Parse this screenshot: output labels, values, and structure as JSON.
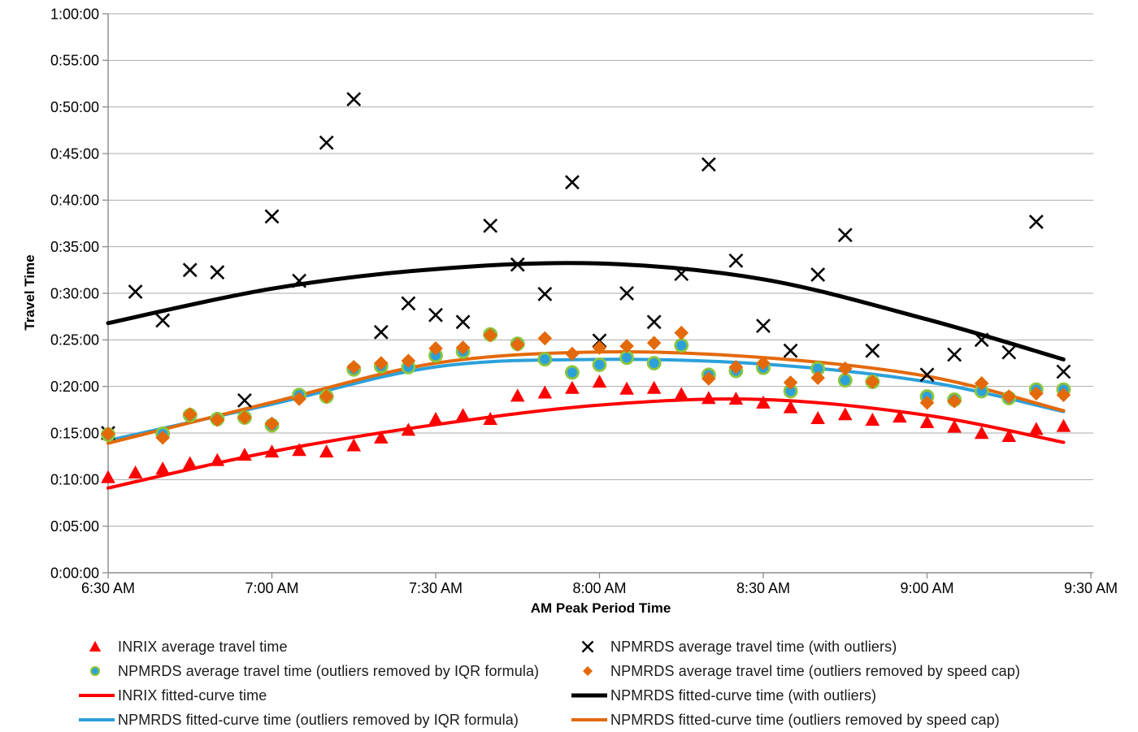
{
  "chart_data": {
    "type": "scatter",
    "title": "",
    "xlabel": "AM Peak Period Time",
    "ylabel": "Travel Time",
    "x_ticks": [
      "6:30 AM",
      "7:00 AM",
      "7:30 AM",
      "8:00 AM",
      "8:30 AM",
      "9:00 AM",
      "9:30 AM"
    ],
    "y_ticks": [
      "0:00:00",
      "0:05:00",
      "0:10:00",
      "0:15:00",
      "0:20:00",
      "0:25:00",
      "0:30:00",
      "0:35:00",
      "0:40:00",
      "0:45:00",
      "0:50:00",
      "0:55:00",
      "1:00:00"
    ],
    "x_axis_minutes_from_630am": [
      0,
      180
    ],
    "y_axis_minutes": [
      0,
      60
    ],
    "grid": true,
    "legend_position": "bottom-two-columns",
    "colors": {
      "inrix": "#FF0000",
      "outliers": "#000000",
      "iqr": "#2CA0DA",
      "iqr_ring": "#8CC63E",
      "speedcap": "#E3690B",
      "gridline": "#ABABAB",
      "axis": "#8C8C8C",
      "text": "#000000"
    },
    "series": [
      {
        "id": "inrix_avg",
        "name": "INRIX average travel time",
        "marker": "triangle",
        "color": "inrix",
        "points": [
          [
            "6:30",
            "0:10:15"
          ],
          [
            "6:35",
            "0:10:45"
          ],
          [
            "6:40",
            "0:11:10"
          ],
          [
            "6:45",
            "0:11:45"
          ],
          [
            "6:50",
            "0:12:05"
          ],
          [
            "6:55",
            "0:12:40"
          ],
          [
            "7:00",
            "0:13:00"
          ],
          [
            "7:05",
            "0:13:10"
          ],
          [
            "7:10",
            "0:13:00"
          ],
          [
            "7:15",
            "0:13:40"
          ],
          [
            "7:20",
            "0:14:30"
          ],
          [
            "7:25",
            "0:15:20"
          ],
          [
            "7:30",
            "0:16:30"
          ],
          [
            "7:35",
            "0:16:55"
          ],
          [
            "7:40",
            "0:16:30"
          ],
          [
            "7:45",
            "0:19:00"
          ],
          [
            "7:50",
            "0:19:20"
          ],
          [
            "7:55",
            "0:19:50"
          ],
          [
            "8:00",
            "0:20:30"
          ],
          [
            "8:05",
            "0:19:45"
          ],
          [
            "8:10",
            "0:19:50"
          ],
          [
            "8:15",
            "0:19:10"
          ],
          [
            "8:20",
            "0:18:45"
          ],
          [
            "8:25",
            "0:18:40"
          ],
          [
            "8:30",
            "0:18:15"
          ],
          [
            "8:35",
            "0:17:45"
          ],
          [
            "8:40",
            "0:16:35"
          ],
          [
            "8:45",
            "0:17:00"
          ],
          [
            "8:50",
            "0:16:25"
          ],
          [
            "8:55",
            "0:16:45"
          ],
          [
            "9:00",
            "0:16:10"
          ],
          [
            "9:05",
            "0:15:40"
          ],
          [
            "9:10",
            "0:15:00"
          ],
          [
            "9:15",
            "0:14:40"
          ],
          [
            "9:20",
            "0:15:25"
          ],
          [
            "9:25",
            "0:15:45"
          ]
        ]
      },
      {
        "id": "npmrds_outliers",
        "name": "NPMRDS average travel time (with outliers)",
        "marker": "x",
        "color": "outliers",
        "points": [
          [
            "6:30",
            "0:15:00"
          ],
          [
            "6:35",
            "0:30:10"
          ],
          [
            "6:40",
            "0:27:05"
          ],
          [
            "6:45",
            "0:32:30"
          ],
          [
            "6:50",
            "0:32:15"
          ],
          [
            "6:55",
            "0:18:30"
          ],
          [
            "7:00",
            "0:38:15"
          ],
          [
            "7:05",
            "0:31:20"
          ],
          [
            "7:10",
            "0:46:10"
          ],
          [
            "7:15",
            "0:50:50"
          ],
          [
            "7:20",
            "0:25:50"
          ],
          [
            "7:25",
            "0:28:55"
          ],
          [
            "7:30",
            "0:27:40"
          ],
          [
            "7:35",
            "0:26:55"
          ],
          [
            "7:40",
            "0:37:15"
          ],
          [
            "7:45",
            "0:33:05"
          ],
          [
            "7:50",
            "0:29:55"
          ],
          [
            "7:55",
            "0:41:55"
          ],
          [
            "8:00",
            "0:24:55"
          ],
          [
            "8:05",
            "0:30:00"
          ],
          [
            "8:10",
            "0:26:55"
          ],
          [
            "8:15",
            "0:32:05"
          ],
          [
            "8:20",
            "0:43:50"
          ],
          [
            "8:25",
            "0:33:30"
          ],
          [
            "8:30",
            "0:26:30"
          ],
          [
            "8:35",
            "0:23:50"
          ],
          [
            "8:40",
            "0:32:00"
          ],
          [
            "8:45",
            "0:36:15"
          ],
          [
            "8:50",
            "0:23:50"
          ],
          [
            "9:00",
            "0:21:15"
          ],
          [
            "9:05",
            "0:23:25"
          ],
          [
            "9:10",
            "0:25:00"
          ],
          [
            "9:15",
            "0:23:40"
          ],
          [
            "9:20",
            "0:37:40"
          ],
          [
            "9:25",
            "0:21:35"
          ]
        ]
      },
      {
        "id": "npmrds_iqr",
        "name": "NPMRDS average travel time (outliers removed by IQR formula)",
        "marker": "circle",
        "color": "iqr",
        "ring": "iqr_ring",
        "points": [
          [
            "6:30",
            "0:14:50"
          ],
          [
            "6:40",
            "0:14:55"
          ],
          [
            "6:45",
            "0:16:55"
          ],
          [
            "6:50",
            "0:16:30"
          ],
          [
            "6:55",
            "0:16:40"
          ],
          [
            "7:00",
            "0:15:50"
          ],
          [
            "7:05",
            "0:19:05"
          ],
          [
            "7:10",
            "0:18:55"
          ],
          [
            "7:15",
            "0:21:50"
          ],
          [
            "7:20",
            "0:22:10"
          ],
          [
            "7:25",
            "0:22:05"
          ],
          [
            "7:30",
            "0:23:20"
          ],
          [
            "7:35",
            "0:23:45"
          ],
          [
            "7:40",
            "0:25:35"
          ],
          [
            "7:45",
            "0:24:35"
          ],
          [
            "7:50",
            "0:22:55"
          ],
          [
            "7:55",
            "0:21:30"
          ],
          [
            "8:00",
            "0:22:20"
          ],
          [
            "8:05",
            "0:23:05"
          ],
          [
            "8:10",
            "0:22:30"
          ],
          [
            "8:15",
            "0:24:25"
          ],
          [
            "8:20",
            "0:21:15"
          ],
          [
            "8:25",
            "0:21:40"
          ],
          [
            "8:30",
            "0:22:00"
          ],
          [
            "8:35",
            "0:19:30"
          ],
          [
            "8:40",
            "0:21:55"
          ],
          [
            "8:45",
            "0:20:40"
          ],
          [
            "8:50",
            "0:20:30"
          ],
          [
            "9:00",
            "0:18:55"
          ],
          [
            "9:05",
            "0:18:35"
          ],
          [
            "9:10",
            "0:19:30"
          ],
          [
            "9:15",
            "0:18:45"
          ],
          [
            "9:20",
            "0:19:40"
          ],
          [
            "9:25",
            "0:19:40"
          ]
        ]
      },
      {
        "id": "npmrds_speedcap",
        "name": "NPMRDS average travel time (outliers removed by speed cap)",
        "marker": "diamond",
        "color": "speedcap",
        "points": [
          [
            "6:30",
            "0:14:55"
          ],
          [
            "6:40",
            "0:14:30"
          ],
          [
            "6:45",
            "0:17:00"
          ],
          [
            "6:50",
            "0:16:25"
          ],
          [
            "6:55",
            "0:16:40"
          ],
          [
            "7:00",
            "0:16:00"
          ],
          [
            "7:05",
            "0:18:40"
          ],
          [
            "7:10",
            "0:18:55"
          ],
          [
            "7:15",
            "0:22:05"
          ],
          [
            "7:20",
            "0:22:30"
          ],
          [
            "7:25",
            "0:22:45"
          ],
          [
            "7:30",
            "0:24:05"
          ],
          [
            "7:35",
            "0:24:10"
          ],
          [
            "7:40",
            "0:25:30"
          ],
          [
            "7:45",
            "0:24:30"
          ],
          [
            "7:50",
            "0:25:10"
          ],
          [
            "7:55",
            "0:23:30"
          ],
          [
            "8:00",
            "0:24:10"
          ],
          [
            "8:05",
            "0:24:20"
          ],
          [
            "8:10",
            "0:24:40"
          ],
          [
            "8:15",
            "0:25:45"
          ],
          [
            "8:20",
            "0:20:50"
          ],
          [
            "8:25",
            "0:22:05"
          ],
          [
            "8:30",
            "0:22:30"
          ],
          [
            "8:35",
            "0:20:25"
          ],
          [
            "8:40",
            "0:20:55"
          ],
          [
            "8:45",
            "0:21:55"
          ],
          [
            "8:50",
            "0:20:30"
          ],
          [
            "9:00",
            "0:18:15"
          ],
          [
            "9:05",
            "0:18:25"
          ],
          [
            "9:10",
            "0:20:20"
          ],
          [
            "9:15",
            "0:18:55"
          ],
          [
            "9:20",
            "0:19:15"
          ],
          [
            "9:25",
            "0:19:05"
          ]
        ]
      }
    ],
    "curves": [
      {
        "id": "outliers_fit",
        "name": "NPMRDS fitted-curve time (with outliers)",
        "color": "outliers",
        "width": 5,
        "samples_min": [
          [
            0,
            26.8
          ],
          [
            30,
            30.5
          ],
          [
            60,
            32.6
          ],
          [
            90,
            33.2
          ],
          [
            120,
            31.5
          ],
          [
            150,
            27.2
          ],
          [
            175,
            22.9
          ]
        ]
      },
      {
        "id": "inrix_fit",
        "name": "INRIX fitted-curve time",
        "color": "inrix",
        "width": 4,
        "samples_min": [
          [
            0,
            9.1
          ],
          [
            30,
            13.0
          ],
          [
            60,
            15.9
          ],
          [
            90,
            18.0
          ],
          [
            120,
            18.6
          ],
          [
            150,
            16.9
          ],
          [
            175,
            14.0
          ]
        ]
      },
      {
        "id": "iqr_fit",
        "name": "NPMRDS fitted-curve time (outliers removed by IQR formula)",
        "color": "iqr",
        "width": 4,
        "samples_min": [
          [
            0,
            14.2
          ],
          [
            30,
            18.1
          ],
          [
            60,
            22.1
          ],
          [
            90,
            22.9
          ],
          [
            120,
            22.4
          ],
          [
            150,
            20.5
          ],
          [
            175,
            17.3
          ]
        ]
      },
      {
        "id": "speedcap_fit",
        "name": "NPMRDS fitted-curve time (outliers removed by speed cap)",
        "color": "speedcap",
        "width": 4,
        "samples_min": [
          [
            0,
            13.9
          ],
          [
            30,
            18.3
          ],
          [
            60,
            22.5
          ],
          [
            90,
            23.7
          ],
          [
            120,
            23.1
          ],
          [
            150,
            21.1
          ],
          [
            175,
            17.4
          ]
        ]
      }
    ]
  },
  "legend": {
    "columns": [
      {
        "items": [
          {
            "swatch": "triangle",
            "color": "inrix",
            "label": "INRIX average travel time"
          },
          {
            "swatch": "circle",
            "color": "iqr",
            "ring": "iqr_ring",
            "label": "NPMRDS average travel time (outliers removed by IQR formula)"
          },
          {
            "swatch": "line",
            "color": "inrix",
            "label": "INRIX fitted-curve time"
          },
          {
            "swatch": "line",
            "color": "iqr",
            "label": "NPMRDS fitted-curve time (outliers removed by IQR formula)"
          }
        ]
      },
      {
        "items": [
          {
            "swatch": "x",
            "color": "outliers",
            "label": "NPMRDS average travel time (with outliers)"
          },
          {
            "swatch": "diamond",
            "color": "speedcap",
            "label": "NPMRDS average travel time (outliers removed by speed cap)"
          },
          {
            "swatch": "line",
            "color": "outliers",
            "label": "NPMRDS fitted-curve time (with outliers)"
          },
          {
            "swatch": "line",
            "color": "speedcap",
            "label": "NPMRDS fitted-curve time (outliers removed by speed cap)"
          }
        ]
      }
    ]
  }
}
